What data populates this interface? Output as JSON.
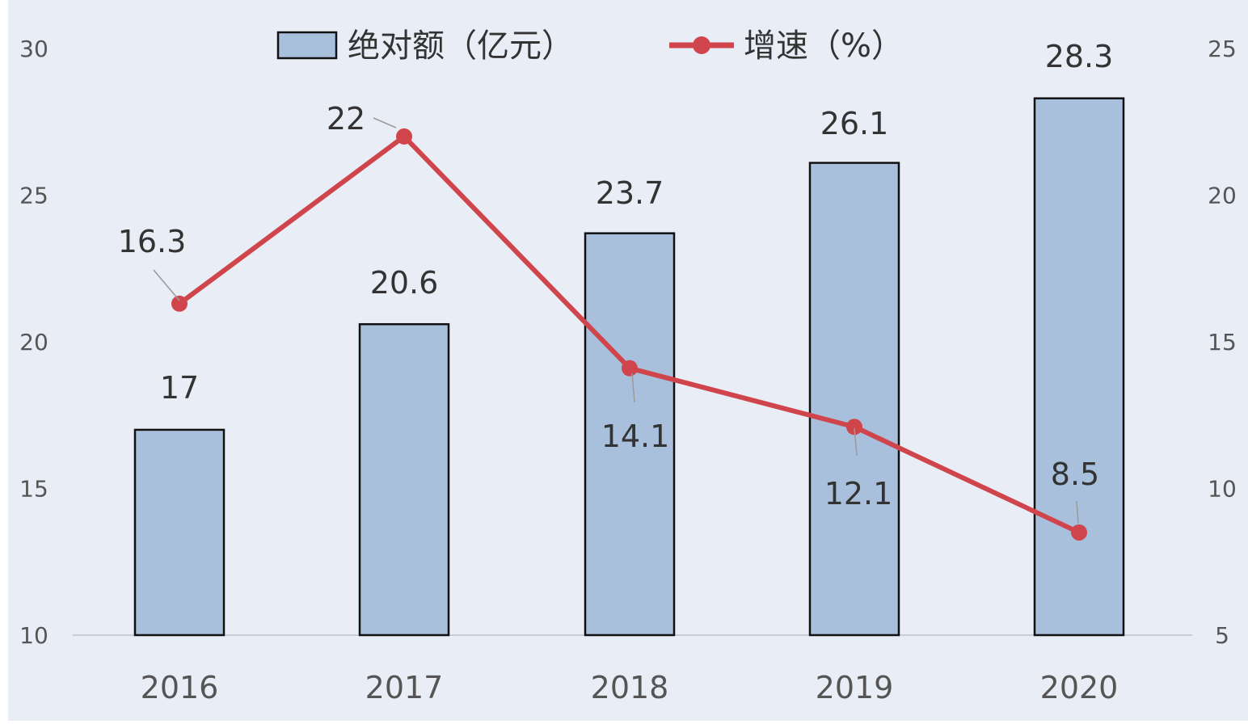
{
  "chart_data": {
    "type": "bar",
    "categories": [
      "2016",
      "2017",
      "2018",
      "2019",
      "2020"
    ],
    "series": [
      {
        "name": "绝对额（亿元）",
        "type": "bar",
        "axis": "left",
        "values": [
          17,
          20.6,
          23.7,
          26.1,
          28.3
        ],
        "labels": [
          "17",
          "20.6",
          "23.7",
          "26.1",
          "28.3"
        ]
      },
      {
        "name": "增速（%）",
        "type": "line",
        "axis": "right",
        "values": [
          16.3,
          22,
          14.1,
          12.1,
          8.5
        ],
        "labels": [
          "16.3",
          "22",
          "14.1",
          "12.1",
          "8.5"
        ]
      }
    ],
    "y_left": {
      "range": [
        10,
        30
      ],
      "ticks": [
        "10",
        "15",
        "20",
        "25",
        "30"
      ]
    },
    "y_right": {
      "range": [
        5,
        25
      ],
      "ticks": [
        "5",
        "10",
        "15",
        "20",
        "25"
      ]
    },
    "title": "",
    "xlabel": "",
    "ylabel": "",
    "grid": false,
    "legend_position": "top-center",
    "colors": {
      "background": "#e8edf6",
      "bar_fill": "#a9c0dd",
      "bar_stroke": "#111111",
      "line": "#d0454b",
      "axis_text": "#555555",
      "label_text": "#333333",
      "leader": "#999999",
      "baseline": "#c8cdd6"
    }
  }
}
